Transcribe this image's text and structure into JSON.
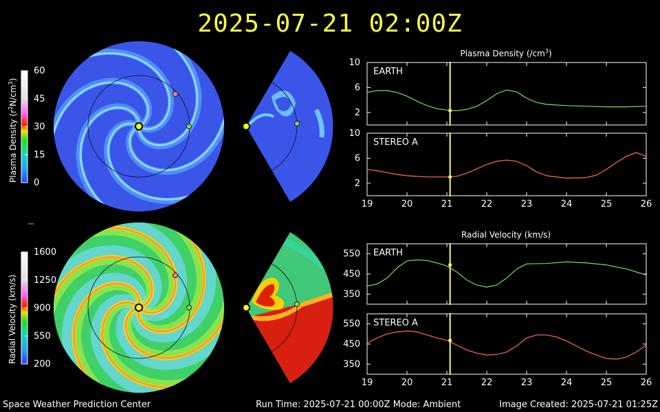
{
  "title": "2025-07-21  02:00Z",
  "footer": {
    "left": "Space Weather Prediction Center",
    "center": "Run Time: 2025-07-21 00:00Z  Mode: Ambient",
    "right": "Image Created: 2025-07-21 01:25Z"
  },
  "density_colorbar": {
    "label_main": "Plasma Density (r",
    "label_sup1": "2",
    "label_mid": "N/cm",
    "label_sup2": "3",
    "label_end": ")",
    "ticks": [
      "60",
      "45",
      "30",
      "15",
      "0"
    ],
    "tick_values": [
      60,
      45,
      30,
      15,
      0
    ],
    "range": [
      0,
      60
    ]
  },
  "velocity_colorbar": {
    "label": "Radial Velocity (km/s)",
    "ticks": [
      "1600",
      "1250",
      "900",
      "550",
      "200"
    ],
    "tick_values": [
      1600,
      1250,
      900,
      550,
      200
    ],
    "range": [
      200,
      1600
    ]
  },
  "colors": {
    "earth_line": "#7be05a",
    "stereo_line": "#ff6a5a",
    "time_marker": "#ffff66",
    "sun": "#ffff00",
    "earth_dot": "#7be05a",
    "stereo_dot": "#ff7a8a"
  },
  "chart_data": [
    {
      "type": "line",
      "title": "Plasma Density (/cm",
      "title_sup": "3",
      "title_end": ")",
      "panel": "EARTH",
      "x": [
        19,
        19.25,
        19.5,
        19.75,
        20,
        20.25,
        20.5,
        20.75,
        21,
        21.25,
        21.5,
        21.75,
        22,
        22.25,
        22.5,
        22.75,
        23,
        23.25,
        23.5,
        24,
        24.5,
        25,
        25.5,
        26
      ],
      "y": [
        5.2,
        5.5,
        5.5,
        5.2,
        4.6,
        3.8,
        3.1,
        2.6,
        2.4,
        2.3,
        2.5,
        3.0,
        3.9,
        5.0,
        5.6,
        5.3,
        4.3,
        3.6,
        3.3,
        3.1,
        3.0,
        2.9,
        2.9,
        3.0
      ],
      "ylim": [
        0,
        10
      ],
      "yticks": [
        2,
        6,
        10
      ],
      "xticks": [
        19,
        20,
        21,
        22,
        23,
        24,
        25,
        26
      ],
      "current_time": 21.08,
      "marker_value": 2.3
    },
    {
      "type": "line",
      "panel": "STEREO A",
      "x": [
        19,
        19.25,
        19.5,
        19.75,
        20,
        20.5,
        21,
        21.25,
        21.5,
        21.75,
        22,
        22.25,
        22.5,
        22.75,
        23,
        23.25,
        23.5,
        24,
        24.5,
        24.75,
        25,
        25.25,
        25.5,
        25.75,
        26
      ],
      "y": [
        4.2,
        4.0,
        3.7,
        3.4,
        3.2,
        3.0,
        3.0,
        3.1,
        3.6,
        4.3,
        5.0,
        5.5,
        5.7,
        5.5,
        4.8,
        3.8,
        3.2,
        2.8,
        2.9,
        3.3,
        4.2,
        5.3,
        6.3,
        6.9,
        6.3
      ],
      "ylim": [
        0,
        10
      ],
      "yticks": [
        2,
        6,
        10
      ],
      "xticks": [
        19,
        20,
        21,
        22,
        23,
        24,
        25,
        26
      ],
      "current_time": 21.08,
      "marker_value": 3.0
    },
    {
      "type": "line",
      "title": "Radial Velocity (km/s)",
      "panel": "EARTH",
      "x": [
        19,
        19.25,
        19.5,
        19.75,
        20,
        20.25,
        20.5,
        20.75,
        21,
        21.25,
        21.5,
        21.75,
        22,
        22.25,
        22.5,
        22.75,
        23,
        23.5,
        24,
        24.5,
        25,
        25.5,
        26
      ],
      "y": [
        390,
        400,
        430,
        480,
        515,
        520,
        517,
        505,
        490,
        460,
        420,
        395,
        385,
        395,
        430,
        475,
        500,
        502,
        510,
        505,
        495,
        475,
        445
      ],
      "ylim": [
        300,
        600
      ],
      "yticks": [
        350,
        450,
        550
      ],
      "xticks": [
        19,
        20,
        21,
        22,
        23,
        24,
        25,
        26
      ],
      "current_time": 21.08,
      "marker_value": 495
    },
    {
      "type": "line",
      "panel": "STEREO A",
      "x": [
        19,
        19.25,
        19.5,
        19.75,
        20,
        20.25,
        20.5,
        20.75,
        21,
        21.25,
        21.5,
        21.75,
        22,
        22.25,
        22.5,
        22.75,
        23,
        23.25,
        23.5,
        23.75,
        24,
        24.25,
        24.5,
        24.75,
        25,
        25.25,
        25.5,
        25.75,
        26
      ],
      "y": [
        455,
        480,
        500,
        510,
        515,
        510,
        495,
        480,
        468,
        445,
        420,
        405,
        395,
        398,
        410,
        440,
        480,
        495,
        495,
        485,
        465,
        440,
        415,
        395,
        378,
        375,
        385,
        410,
        445
      ],
      "ylim": [
        300,
        600
      ],
      "yticks": [
        350,
        450,
        550
      ],
      "xticks": [
        19,
        20,
        21,
        22,
        23,
        24,
        25,
        26
      ],
      "current_time": 21.08,
      "marker_value": 468
    }
  ]
}
